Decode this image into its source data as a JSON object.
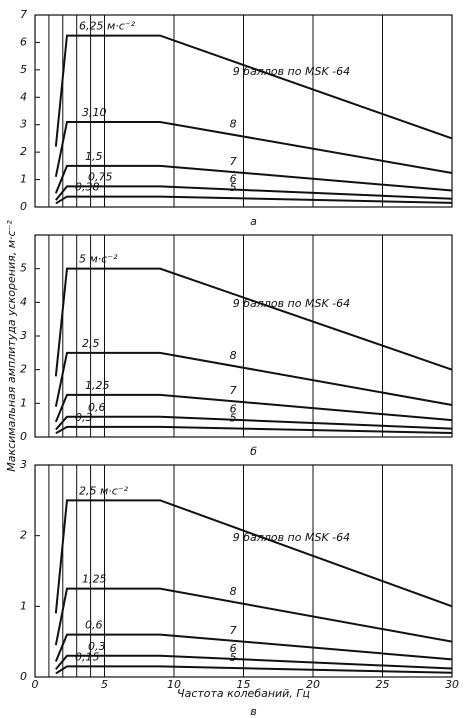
{
  "chart_data": [
    {
      "type": "line",
      "caption": "а",
      "xlim": [
        0,
        30
      ],
      "ylim": [
        0,
        7
      ],
      "yticks": [
        0,
        1,
        2,
        3,
        4,
        5,
        6,
        7
      ],
      "xgrid": [
        1,
        2,
        3,
        4,
        5,
        10,
        15,
        20,
        25
      ],
      "x": [
        1.5,
        2.3,
        9,
        30
      ],
      "color": "#111111",
      "series": [
        {
          "name": "9 баллов по MSK -64",
          "values": [
            2.2,
            6.25,
            6.25,
            2.5
          ],
          "value_labels": [
            null,
            "6,25 м·с⁻²",
            null,
            null
          ]
        },
        {
          "name": "8",
          "values": [
            1.1,
            3.1,
            3.1,
            1.24
          ],
          "value_labels": [
            null,
            "3,10",
            null,
            null
          ]
        },
        {
          "name": "7",
          "values": [
            0.5,
            1.5,
            1.5,
            0.6
          ],
          "value_labels": [
            null,
            "1,5",
            null,
            null
          ]
        },
        {
          "name": "6",
          "values": [
            0.25,
            0.75,
            0.75,
            0.3
          ],
          "value_labels": [
            null,
            "0,75",
            null,
            null
          ]
        },
        {
          "name": "5",
          "values": [
            0.13,
            0.38,
            0.38,
            0.15
          ],
          "value_labels": [
            null,
            "0,38",
            null,
            null
          ]
        }
      ]
    },
    {
      "type": "line",
      "caption": "б",
      "xlim": [
        0,
        30
      ],
      "ylim": [
        0,
        6
      ],
      "yticks": [
        0,
        1,
        2,
        3,
        4,
        5
      ],
      "xgrid": [
        1,
        2,
        3,
        4,
        5,
        10,
        15,
        20,
        25
      ],
      "x": [
        1.5,
        2.3,
        9,
        30
      ],
      "color": "#111111",
      "series": [
        {
          "name": "9 баллов по MSK -64",
          "values": [
            1.8,
            5,
            5,
            2
          ],
          "value_labels": [
            null,
            "5 м·с⁻²",
            null,
            null
          ]
        },
        {
          "name": "8",
          "values": [
            0.9,
            2.5,
            2.5,
            0.95
          ],
          "value_labels": [
            null,
            "2,5",
            null,
            null
          ]
        },
        {
          "name": "7",
          "values": [
            0.45,
            1.25,
            1.25,
            0.5
          ],
          "value_labels": [
            null,
            "1,25",
            null,
            null
          ]
        },
        {
          "name": "6",
          "values": [
            0.22,
            0.6,
            0.6,
            0.25
          ],
          "value_labels": [
            null,
            "0,6",
            null,
            null
          ]
        },
        {
          "name": "5",
          "values": [
            0.11,
            0.3,
            0.3,
            0.12
          ],
          "value_labels": [
            null,
            "0,3",
            null,
            null
          ]
        }
      ]
    },
    {
      "type": "line",
      "caption": "в",
      "xlim": [
        0,
        30
      ],
      "ylim": [
        0,
        3
      ],
      "yticks": [
        0,
        1,
        2,
        3
      ],
      "xgrid": [
        1,
        2,
        3,
        4,
        5,
        10,
        15,
        20,
        25
      ],
      "xticks": [
        0,
        5,
        10,
        15,
        20,
        25,
        30
      ],
      "xlabel": "Частота колебаний, Гц",
      "ylabel": "Максимальная амплитуда ускорения, м·с⁻²",
      "x": [
        1.5,
        2.3,
        9,
        30
      ],
      "color": "#111111",
      "series": [
        {
          "name": "9 баллов по MSK -64",
          "values": [
            0.9,
            2.5,
            2.5,
            1.0
          ],
          "value_labels": [
            null,
            "2,5 м·с⁻²",
            null,
            null
          ]
        },
        {
          "name": "8",
          "values": [
            0.45,
            1.25,
            1.25,
            0.5
          ],
          "value_labels": [
            null,
            "1,25",
            null,
            null
          ]
        },
        {
          "name": "7",
          "values": [
            0.22,
            0.6,
            0.6,
            0.25
          ],
          "value_labels": [
            null,
            "0,6",
            null,
            null
          ]
        },
        {
          "name": "6",
          "values": [
            0.11,
            0.3,
            0.3,
            0.12
          ],
          "value_labels": [
            null,
            "0,3",
            null,
            null
          ]
        },
        {
          "name": "5",
          "values": [
            0.05,
            0.15,
            0.15,
            0.06
          ],
          "value_labels": [
            null,
            "0,15",
            null,
            null
          ]
        }
      ]
    }
  ]
}
